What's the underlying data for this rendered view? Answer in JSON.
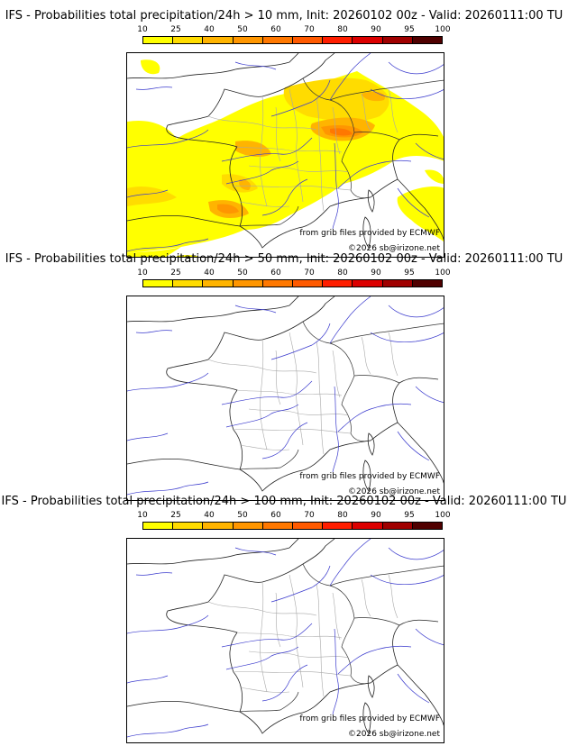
{
  "legend_levels": [
    "10",
    "25",
    "40",
    "50",
    "60",
    "70",
    "80",
    "90",
    "95",
    "100"
  ],
  "legend_colors": [
    "#ffff00",
    "#ffdc00",
    "#ffb400",
    "#ff9600",
    "#ff7800",
    "#ff5a00",
    "#ff1e00",
    "#dc0000",
    "#a00000",
    "#500000"
  ],
  "panels": [
    {
      "title": "IFS - Probabilities total precipitation/24h > 10 mm, Init: 20260102 00z - Valid: 20260111:00 TU",
      "credit_source": "from grib files provided by ECMWF",
      "credit_copyright": "©2026 sb@irizone.net"
    },
    {
      "title": "IFS - Probabilities total precipitation/24h > 50 mm, Init: 20260102 00z - Valid: 20260111:00 TU",
      "credit_source": "from grib files provided by ECMWF",
      "credit_copyright": "©2026 sb@irizone.net"
    },
    {
      "title": "IFS - Probabilities total precipitation/24h > 100 mm, Init: 20260102 00z - Valid: 20260111:00 TU",
      "credit_source": "from grib files provided by ECMWF",
      "credit_copyright": "©2026 sb@irizone.net"
    }
  ]
}
